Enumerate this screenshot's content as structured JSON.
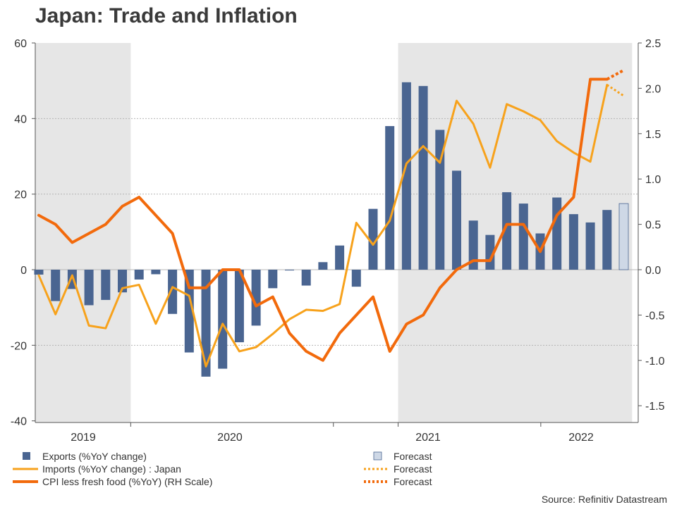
{
  "chart_data": {
    "type": "bar+line",
    "title": "Japan: Trade and Inflation",
    "source": "Source: Refinitiv Datastream",
    "left_axis": {
      "min": -40,
      "max": 60,
      "ticks": [
        "60",
        "40",
        "20",
        "0",
        "-20",
        "-40"
      ]
    },
    "right_axis": {
      "min": -1.7,
      "max": 2.5,
      "ticks": [
        "2.5",
        "2.0",
        "1.5",
        "1.0",
        "0.5",
        "0.0",
        "-0.5",
        "-1.0",
        "-1.5"
      ]
    },
    "year_labels": [
      "2019",
      "2020",
      "2021",
      "2022"
    ],
    "months": [
      "2019-01",
      "2019-02",
      "2019-03",
      "2019-04",
      "2019-05",
      "2019-06",
      "2019-07",
      "2019-08",
      "2019-09",
      "2019-10",
      "2019-11",
      "2019-12",
      "2020-01",
      "2020-02",
      "2020-03",
      "2020-04",
      "2020-05",
      "2020-06",
      "2020-07",
      "2020-08",
      "2020-09",
      "2020-10",
      "2020-11",
      "2020-12",
      "2021-01",
      "2021-02",
      "2021-03",
      "2021-04",
      "2021-05",
      "2021-06",
      "2021-07",
      "2021-08",
      "2021-09",
      "2021-10",
      "2021-11",
      "2021-12",
      "2022-01",
      "2022-02",
      "2022-03",
      "2022-04",
      "2022-05",
      "2022-06",
      "2022-07",
      "2022-08",
      "2022-09",
      "2022-10"
    ],
    "shaded_periods": [
      [
        "2019-01",
        "2019-06"
      ],
      [
        "2020-11",
        "2021-12"
      ]
    ],
    "series": [
      {
        "name": "Exports (%YoY change)",
        "type": "bar",
        "axis": "left",
        "color": "#4a6591",
        "points": [
          {
            "month": "2019-01",
            "value": -1.3
          },
          {
            "month": "2019-02",
            "value": -8.3
          },
          {
            "month": "2019-03",
            "value": -5.1
          },
          {
            "month": "2019-04",
            "value": -9.4
          },
          {
            "month": "2019-05",
            "value": -8.0
          },
          {
            "month": "2019-06",
            "value": -6.0
          },
          {
            "month": "2019-07",
            "value": -2.6
          },
          {
            "month": "2019-08",
            "value": -1.2
          },
          {
            "month": "2019-09",
            "value": -11.7
          },
          {
            "month": "2019-10",
            "value": -21.9
          },
          {
            "month": "2019-11",
            "value": -28.3
          },
          {
            "month": "2019-12",
            "value": -26.2
          },
          {
            "month": "2020-01",
            "value": -19.2
          },
          {
            "month": "2020-02",
            "value": -14.8
          },
          {
            "month": "2020-03",
            "value": -4.9
          },
          {
            "month": "2020-04",
            "value": -0.2
          },
          {
            "month": "2020-05",
            "value": -4.2
          },
          {
            "month": "2020-06",
            "value": 2.0
          },
          {
            "month": "2020-07",
            "value": 6.4
          },
          {
            "month": "2020-08",
            "value": -4.5
          },
          {
            "month": "2020-09",
            "value": 16.1
          },
          {
            "month": "2020-10",
            "value": 38.0
          },
          {
            "month": "2020-11",
            "value": 49.6
          },
          {
            "month": "2020-12",
            "value": 48.6
          },
          {
            "month": "2021-01",
            "value": 37.0
          },
          {
            "month": "2021-02",
            "value": 26.2
          },
          {
            "month": "2021-03",
            "value": 13.0
          },
          {
            "month": "2021-04",
            "value": 9.2
          },
          {
            "month": "2021-05",
            "value": 20.5
          },
          {
            "month": "2021-06",
            "value": 17.5
          },
          {
            "month": "2021-07",
            "value": 9.6
          },
          {
            "month": "2021-08",
            "value": 19.1
          },
          {
            "month": "2021-09",
            "value": 14.7
          },
          {
            "month": "2021-10",
            "value": 12.5
          },
          {
            "month": "2021-11",
            "value": 15.8
          }
        ]
      },
      {
        "name": "Forecast",
        "type": "bar",
        "axis": "left",
        "color": "#ced8e6",
        "points": [
          {
            "month": "2021-12",
            "value": 17.5
          }
        ]
      },
      {
        "name": "Imports (%YoY change) : Japan",
        "type": "line",
        "axis": "left",
        "color": "#f7a21c",
        "points": [
          {
            "month": "2019-01",
            "value": -1.5
          },
          {
            "month": "2019-02",
            "value": -11.8
          },
          {
            "month": "2019-03",
            "value": -1.5
          },
          {
            "month": "2019-04",
            "value": -14.8
          },
          {
            "month": "2019-05",
            "value": -15.5
          },
          {
            "month": "2019-06",
            "value": -4.9
          },
          {
            "month": "2019-07",
            "value": -4.0
          },
          {
            "month": "2019-08",
            "value": -14.3
          },
          {
            "month": "2019-09",
            "value": -4.6
          },
          {
            "month": "2019-10",
            "value": -6.9
          },
          {
            "month": "2019-11",
            "value": -25.6
          },
          {
            "month": "2019-12",
            "value": -14.3
          },
          {
            "month": "2020-01",
            "value": -21.6
          },
          {
            "month": "2020-02",
            "value": -20.5
          },
          {
            "month": "2020-03",
            "value": -17.0
          },
          {
            "month": "2020-04",
            "value": -13.1
          },
          {
            "month": "2020-05",
            "value": -10.6
          },
          {
            "month": "2020-06",
            "value": -10.9
          },
          {
            "month": "2020-07",
            "value": -9.1
          },
          {
            "month": "2020-08",
            "value": 12.4
          },
          {
            "month": "2020-09",
            "value": 6.6
          },
          {
            "month": "2020-10",
            "value": 13.0
          },
          {
            "month": "2020-11",
            "value": 28.1
          },
          {
            "month": "2020-12",
            "value": 32.7
          },
          {
            "month": "2021-01",
            "value": 28.3
          },
          {
            "month": "2021-02",
            "value": 44.7
          },
          {
            "month": "2021-03",
            "value": 38.6
          },
          {
            "month": "2021-04",
            "value": 27.0
          },
          {
            "month": "2021-05",
            "value": 43.8
          },
          {
            "month": "2021-06",
            "value": 41.9
          },
          {
            "month": "2021-07",
            "value": 39.6
          },
          {
            "month": "2021-08",
            "value": 34.0
          },
          {
            "month": "2021-09",
            "value": 31.0
          },
          {
            "month": "2021-10",
            "value": 28.6
          },
          {
            "month": "2021-11",
            "value": 48.9
          }
        ]
      },
      {
        "name": "Forecast",
        "type": "line-dotted",
        "axis": "left",
        "color": "#f7a21c",
        "points": [
          {
            "month": "2021-11",
            "value": 48.9
          },
          {
            "month": "2021-12",
            "value": 46.0
          }
        ]
      },
      {
        "name": "CPI less fresh food (%YoY) (RH Scale)",
        "type": "line",
        "axis": "right",
        "color": "#f26a0c",
        "points": [
          {
            "month": "2019-01",
            "value": 0.6
          },
          {
            "month": "2019-02",
            "value": 0.5
          },
          {
            "month": "2019-03",
            "value": 0.3
          },
          {
            "month": "2019-04",
            "value": 0.4
          },
          {
            "month": "2019-05",
            "value": 0.5
          },
          {
            "month": "2019-06",
            "value": 0.7
          },
          {
            "month": "2019-07",
            "value": 0.8
          },
          {
            "month": "2019-08",
            "value": 0.6
          },
          {
            "month": "2019-09",
            "value": 0.4
          },
          {
            "month": "2019-10",
            "value": -0.2
          },
          {
            "month": "2019-11",
            "value": -0.2
          },
          {
            "month": "2019-12",
            "value": 0.0
          },
          {
            "month": "2020-01",
            "value": 0.0
          },
          {
            "month": "2020-02",
            "value": -0.4
          },
          {
            "month": "2020-03",
            "value": -0.3
          },
          {
            "month": "2020-04",
            "value": -0.7
          },
          {
            "month": "2020-05",
            "value": -0.9
          },
          {
            "month": "2020-06",
            "value": -1.0
          },
          {
            "month": "2020-07",
            "value": -0.7
          },
          {
            "month": "2020-08",
            "value": -0.5
          },
          {
            "month": "2020-09",
            "value": -0.3
          },
          {
            "month": "2020-10",
            "value": -0.9
          },
          {
            "month": "2020-11",
            "value": -0.6
          },
          {
            "month": "2020-12",
            "value": -0.5
          },
          {
            "month": "2021-01",
            "value": -0.2
          },
          {
            "month": "2021-02",
            "value": 0.0
          },
          {
            "month": "2021-03",
            "value": 0.1
          },
          {
            "month": "2021-04",
            "value": 0.1
          },
          {
            "month": "2021-05",
            "value": 0.5
          },
          {
            "month": "2021-06",
            "value": 0.5
          },
          {
            "month": "2021-07",
            "value": 0.2
          },
          {
            "month": "2021-08",
            "value": 0.6
          },
          {
            "month": "2021-09",
            "value": 0.8
          },
          {
            "month": "2021-10",
            "value": 2.1
          },
          {
            "month": "2021-11",
            "value": 2.1
          }
        ]
      },
      {
        "name": "Forecast",
        "type": "line-dotted",
        "axis": "right",
        "color": "#f26a0c",
        "points": [
          {
            "month": "2021-11",
            "value": 2.1
          },
          {
            "month": "2021-12",
            "value": 2.2
          }
        ]
      }
    ],
    "legend": [
      {
        "label": "Exports (%YoY change)",
        "symbol": "square",
        "color": "#4a6591"
      },
      {
        "label": "Forecast",
        "symbol": "square",
        "color": "#ced8e6"
      },
      {
        "label": "Imports (%YoY change) : Japan",
        "symbol": "line",
        "color": "#f7a21c"
      },
      {
        "label": "Forecast",
        "symbol": "dotted-line",
        "color": "#f7a21c"
      },
      {
        "label": "CPI less fresh food (%YoY) (RH Scale)",
        "symbol": "line",
        "color": "#f26a0c"
      },
      {
        "label": "Forecast",
        "symbol": "dotted-line",
        "color": "#f26a0c"
      }
    ],
    "legend_position": "bottom",
    "grid": true
  }
}
